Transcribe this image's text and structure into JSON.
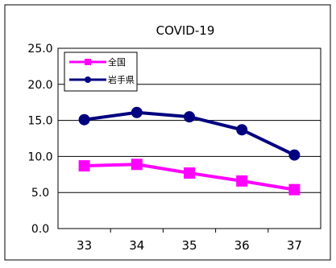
{
  "chart_data": {
    "type": "line",
    "title": "COVID-19",
    "xlabel": "",
    "ylabel": "",
    "categories": [
      "33",
      "34",
      "35",
      "36",
      "37"
    ],
    "ylim": [
      0,
      25
    ],
    "yticks": [
      "0.0",
      "5.0",
      "10.0",
      "15.0",
      "20.0",
      "25.0"
    ],
    "grid": "horizontal",
    "legend_position": "top-left",
    "series": [
      {
        "name": "全国",
        "values": [
          8.7,
          8.9,
          7.7,
          6.6,
          5.4
        ],
        "color": "#ff00ff",
        "marker": "square"
      },
      {
        "name": "岩手県",
        "values": [
          15.1,
          16.1,
          15.5,
          13.7,
          10.2
        ],
        "color": "#000080",
        "marker": "circle"
      }
    ]
  }
}
